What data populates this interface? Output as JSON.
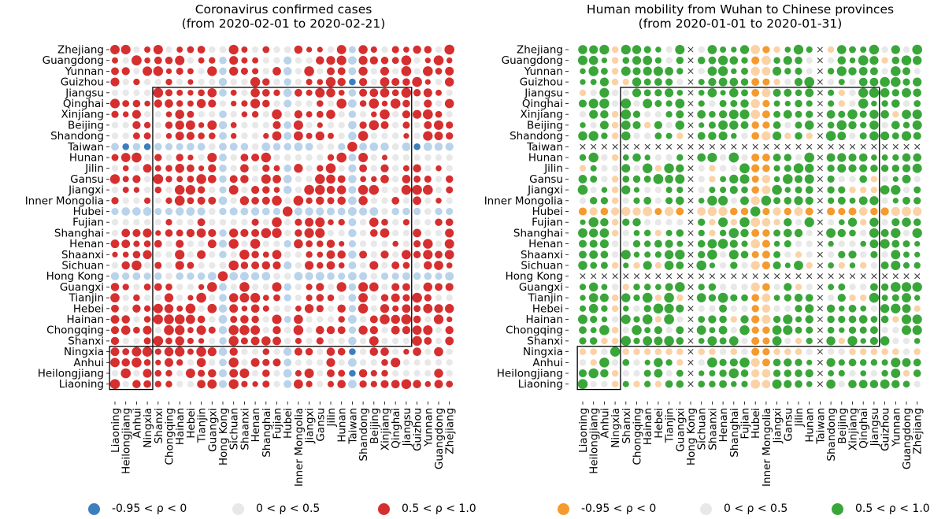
{
  "charts_title": {
    "left": [
      "Coronavirus confirmed cases",
      "(from 2020-02-01 to 2020-02-21)"
    ],
    "right": [
      "Human mobility from Wuhan to Chinese provinces",
      "(from 2020-01-01 to 2020-01-31)"
    ]
  },
  "legend": {
    "left": [
      {
        "label": "-0.95 < ρ < 0",
        "color": "#3b7fbf"
      },
      {
        "label": "0 < ρ < 0.5",
        "color": "#e8e8e8"
      },
      {
        "label": "0.5 < ρ < 1.0",
        "color": "#d62f2f"
      }
    ],
    "right": [
      {
        "label": "-0.95 < ρ < 0",
        "color": "#f59a2e"
      },
      {
        "label": "0 < ρ < 0.5",
        "color": "#e8e8e8"
      },
      {
        "label": "0.5 < ρ < 1.0",
        "color": "#3aa63a"
      }
    ]
  },
  "chart_data": [
    {
      "type": "heatmap",
      "title": "Coronavirus confirmed cases (from 2020-02-01 to 2020-02-21)",
      "rows": [
        "Zhejiang",
        "Guangdong",
        "Yunnan",
        "Guizhou",
        "Jiangsu",
        "Qinghai",
        "Xinjiang",
        "Beijing",
        "Shandong",
        "Taiwan",
        "Hunan",
        "Jilin",
        "Gansu",
        "Jiangxi",
        "Inner Mongolia",
        "Hubei",
        "Fujian",
        "Shanghai",
        "Henan",
        "Shaanxi",
        "Sichuan",
        "Hong Kong",
        "Guangxi",
        "Tianjin",
        "Hebei",
        "Hainan",
        "Chongqing",
        "Shanxi",
        "Ningxia",
        "Anhui",
        "Heilongjiang",
        "Liaoning"
      ],
      "columns": [
        "Liaoning",
        "Heilongjiang",
        "Anhui",
        "Ningxia",
        "Shanxi",
        "Chongqing",
        "Hainan",
        "Hebei",
        "Tianjin",
        "Guangxi",
        "Hong Kong",
        "Sichuan",
        "Shaanxi",
        "Henan",
        "Shanghai",
        "Fujian",
        "Hubei",
        "Inner Mongolia",
        "Jiangxi",
        "Gansu",
        "Jilin",
        "Hunan",
        "Taiwan",
        "Shandong",
        "Beijing",
        "Xinjiang",
        "Qinghai",
        "Jiangsu",
        "Guizhou",
        "Yunnan",
        "Guangdong",
        "Zhejiang"
      ],
      "special_rows": {
        "Hubei": "light-blue",
        "Hong Kong": "light-blue",
        "Taiwan": "light-blue"
      },
      "special_cols": {
        "Hong Kong": "light-blue",
        "Hubei": "light-blue",
        "Taiwan": "light-blue"
      },
      "negative_cells": [
        [
          "Guizhou",
          "Taiwan"
        ],
        [
          "Taiwan",
          "Heilongjiang"
        ],
        [
          "Taiwan",
          "Ningxia"
        ],
        [
          "Taiwan",
          "Guizhou"
        ],
        [
          "Ningxia",
          "Taiwan"
        ],
        [
          "Heilongjiang",
          "Taiwan"
        ]
      ],
      "diagonal_value": 1.0,
      "highlight_boxes": [
        {
          "rows": [
            "Jiangsu",
            "Shanxi"
          ],
          "columns": [
            "Shanxi",
            "Jiangsu"
          ]
        },
        {
          "rows": [
            "Ningxia",
            "Liaoning"
          ],
          "columns": [
            "Liaoning",
            "Ningxia"
          ]
        }
      ],
      "legend": [
        "-0.95 < ρ < 0",
        "0 < ρ < 0.5",
        "0.5 < ρ < 1.0"
      ]
    },
    {
      "type": "heatmap",
      "title": "Human mobility from Wuhan to Chinese provinces (from 2020-01-01 to 2020-01-31)",
      "rows": [
        "Zhejiang",
        "Guangdong",
        "Yunnan",
        "Guizhou",
        "Jiangsu",
        "Qinghai",
        "Xinjiang",
        "Beijing",
        "Shandong",
        "Taiwan",
        "Hunan",
        "Jilin",
        "Gansu",
        "Jiangxi",
        "Inner Mongolia",
        "Hubei",
        "Fujian",
        "Shanghai",
        "Henan",
        "Shaanxi",
        "Sichuan",
        "Hong Kong",
        "Guangxi",
        "Tianjin",
        "Hebei",
        "Hainan",
        "Chongqing",
        "Shanxi",
        "Ningxia",
        "Anhui",
        "Heilongjiang",
        "Liaoning"
      ],
      "columns": [
        "Liaoning",
        "Heilongjiang",
        "Anhui",
        "Ningxia",
        "Shanxi",
        "Chongqing",
        "Hainan",
        "Hebei",
        "Tianjin",
        "Guangxi",
        "Hong Kong",
        "Sichuan",
        "Shaanxi",
        "Henan",
        "Shanghai",
        "Fujian",
        "Hubei",
        "Inner Mongolia",
        "Jiangxi",
        "Gansu",
        "Jilin",
        "Hunan",
        "Taiwan",
        "Shandong",
        "Beijing",
        "Xinjiang",
        "Qinghai",
        "Jiangsu",
        "Guizhou",
        "Yunnan",
        "Guangdong",
        "Zhejiang"
      ],
      "missing_rows": [
        "Taiwan",
        "Hong Kong"
      ],
      "missing_cols": [
        "Hong Kong",
        "Taiwan"
      ],
      "negative_rows": [
        "Hubei"
      ],
      "negative_cols": [
        "Hubei",
        "Inner Mongolia"
      ],
      "diagonal_value": 1.0,
      "highlight_boxes": [
        {
          "rows": [
            "Jiangsu",
            "Shanxi"
          ],
          "columns": [
            "Shanxi",
            "Jiangsu"
          ]
        },
        {
          "rows": [
            "Ningxia",
            "Liaoning"
          ],
          "columns": [
            "Liaoning",
            "Ningxia"
          ]
        }
      ],
      "legend": [
        "-0.95 < ρ < 0",
        "0 < ρ < 0.5",
        "0.5 < ρ < 1.0"
      ]
    }
  ]
}
